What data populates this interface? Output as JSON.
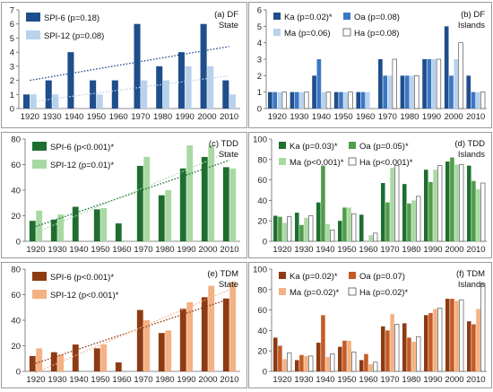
{
  "chart_data": [
    {
      "type": "bar",
      "id": "a",
      "title": "(a) DF",
      "subtitle": "State",
      "categories": [
        "1920",
        "1930",
        "1940",
        "1950",
        "1960",
        "1970",
        "1980",
        "1990",
        "2000",
        "2010"
      ],
      "ylim": [
        0,
        7
      ],
      "yticks": [
        0,
        1,
        2,
        3,
        4,
        5,
        6,
        7
      ],
      "legend_position": "top-left",
      "trend_lines": true,
      "series": [
        {
          "name": "SPI-6 (p=0.18)",
          "color": "#1f4e8c",
          "values": [
            1,
            2,
            4,
            2,
            2,
            6,
            3,
            4,
            6,
            2
          ]
        },
        {
          "name": "SPI-12 (p=0.08)",
          "color": "#b9d2ec",
          "values": [
            1,
            1,
            0,
            1,
            0,
            2,
            2,
            3,
            3,
            1
          ]
        }
      ]
    },
    {
      "type": "bar",
      "id": "b",
      "title": "(b) DF",
      "subtitle": "Islands",
      "categories": [
        "1920",
        "1930",
        "1940",
        "1950",
        "1960",
        "1970",
        "1980",
        "1990",
        "2000",
        "2010"
      ],
      "ylim": [
        0,
        6
      ],
      "yticks": [
        0,
        1,
        2,
        3,
        4,
        5,
        6
      ],
      "legend_position": "top-left",
      "trend_lines": false,
      "series": [
        {
          "name": "Ka (p=0.02)*",
          "color": "#1f4e8c",
          "values": [
            1,
            1,
            2,
            1,
            1,
            3,
            2,
            3,
            5,
            2
          ]
        },
        {
          "name": "Oa (p=0.08)",
          "color": "#3a78c4",
          "values": [
            1,
            1,
            3,
            1,
            1,
            2,
            2,
            3,
            2,
            1
          ]
        },
        {
          "name": "Ma (p=0.06)",
          "color": "#b9d2ec",
          "values": [
            1,
            1,
            1,
            1,
            1,
            2,
            2,
            3,
            3,
            1
          ]
        },
        {
          "name": "Ha (p=0.08)",
          "color": "#ffffff",
          "values": [
            1,
            1,
            1,
            1,
            0,
            3,
            2,
            3,
            4,
            1
          ]
        }
      ]
    },
    {
      "type": "bar",
      "id": "c",
      "title": "(c) TDD",
      "subtitle": "State",
      "categories": [
        "1920",
        "1930",
        "1940",
        "1950",
        "1960",
        "1970",
        "1980",
        "1990",
        "2000",
        "2010"
      ],
      "ylim": [
        0,
        80
      ],
      "yticks": [
        0,
        20,
        40,
        60,
        80
      ],
      "legend_position": "top-left",
      "trend_lines": true,
      "series": [
        {
          "name": "SPI-6 (p<0.001)*",
          "color": "#1e6e30",
          "values": [
            16,
            17,
            27,
            25,
            14,
            59,
            36,
            57,
            66,
            58
          ]
        },
        {
          "name": "SPI-12 (p=0.01)*",
          "color": "#a9d9a3",
          "values": [
            24,
            21,
            0,
            26,
            0,
            66,
            40,
            75,
            75,
            57
          ]
        }
      ]
    },
    {
      "type": "bar",
      "id": "d",
      "title": "(d) TDD",
      "subtitle": "Islands",
      "categories": [
        "1920",
        "1930",
        "1940",
        "1950",
        "1960",
        "1970",
        "1980",
        "1990",
        "2000",
        "2010"
      ],
      "ylim": [
        0,
        100
      ],
      "yticks": [
        0,
        20,
        40,
        60,
        80,
        100
      ],
      "legend_position": "top-left",
      "trend_lines": false,
      "series": [
        {
          "name": "Ka (p=0.03)*",
          "color": "#1e6e30",
          "values": [
            25,
            28,
            38,
            20,
            26,
            57,
            56,
            70,
            78,
            74
          ]
        },
        {
          "name": "Oa (p=0.05)*",
          "color": "#4f9d48",
          "values": [
            24,
            16,
            74,
            33,
            0,
            38,
            37,
            58,
            82,
            59
          ]
        },
        {
          "name": "Ma (p<0.001)*",
          "color": "#a9d9a3",
          "values": [
            18,
            23,
            17,
            33,
            6,
            72,
            40,
            70,
            75,
            51
          ]
        },
        {
          "name": "Ha (p<0.001)*",
          "color": "#ffffff",
          "values": [
            24,
            25,
            11,
            27,
            8,
            74,
            44,
            74,
            75,
            57
          ]
        }
      ]
    },
    {
      "type": "bar",
      "id": "e",
      "title": "(e) TDM",
      "subtitle": "State",
      "categories": [
        "1920",
        "1930",
        "1940",
        "1950",
        "1960",
        "1970",
        "1980",
        "1990",
        "2000",
        "2010"
      ],
      "ylim": [
        0,
        80
      ],
      "yticks": [
        0,
        20,
        40,
        60,
        80
      ],
      "legend_position": "top-left",
      "trend_lines": true,
      "series": [
        {
          "name": "SPI-6 (p<0.001)*",
          "color": "#8e3a12",
          "values": [
            12,
            15,
            21,
            18,
            7,
            48,
            30,
            49,
            58,
            57
          ]
        },
        {
          "name": "SPI-12 (p<0.001)*",
          "color": "#f4b183",
          "values": [
            18,
            13,
            0,
            21,
            0,
            40,
            32,
            54,
            67,
            70
          ]
        }
      ]
    },
    {
      "type": "bar",
      "id": "f",
      "title": "(f) TDM",
      "subtitle": "Islands",
      "categories": [
        "1920",
        "1930",
        "1940",
        "1950",
        "1960",
        "1970",
        "1980",
        "1990",
        "2000",
        "2010"
      ],
      "ylim": [
        0,
        100
      ],
      "yticks": [
        0,
        20,
        40,
        60,
        80,
        100
      ],
      "legend_position": "top-left",
      "trend_lines": false,
      "series": [
        {
          "name": "Ka (p=0.02)*",
          "color": "#8e3a12",
          "values": [
            33,
            11,
            28,
            24,
            11,
            44,
            47,
            55,
            71,
            49
          ]
        },
        {
          "name": "Oa (p=0.07)",
          "color": "#c55a24",
          "values": [
            25,
            16,
            55,
            30,
            17,
            40,
            33,
            57,
            71,
            46
          ]
        },
        {
          "name": "Ma (p=0.02)*",
          "color": "#f4b183",
          "values": [
            12,
            15,
            14,
            30,
            7,
            56,
            29,
            61,
            69,
            61
          ]
        },
        {
          "name": "Ha (p=0.02)*",
          "color": "#ffffff",
          "values": [
            18,
            15,
            17,
            19,
            9,
            46,
            34,
            62,
            70,
            86
          ]
        }
      ]
    }
  ]
}
